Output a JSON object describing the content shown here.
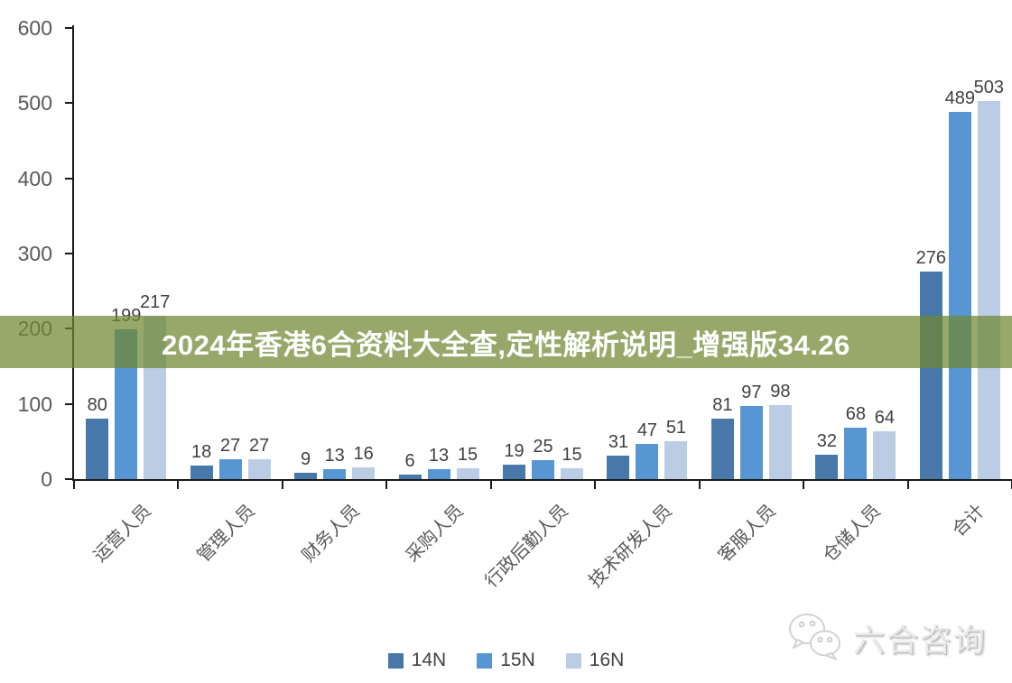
{
  "overlay": {
    "title": "2024年香港6合资料大全查,定性解析说明_增强版34.26",
    "bg_color": "rgba(111,135,48,0.72)",
    "text_color": "#ffffff"
  },
  "chart_data": {
    "type": "bar",
    "title": "",
    "xlabel": "",
    "ylabel": "",
    "ylim": [
      0,
      600
    ],
    "yticks": [
      0,
      100,
      200,
      300,
      400,
      500,
      600
    ],
    "grid": false,
    "legend_position": "bottom",
    "categories": [
      "运营人员",
      "管理人员",
      "财务人员",
      "采购人员",
      "行政后勤人员",
      "技术研发人员",
      "客服人员",
      "仓储人员",
      "合计"
    ],
    "series": [
      {
        "name": "14N",
        "color": "#4878aa",
        "values": [
          80,
          18,
          9,
          6,
          19,
          31,
          81,
          32,
          276
        ]
      },
      {
        "name": "15N",
        "color": "#5896d3",
        "values": [
          199,
          27,
          13,
          13,
          25,
          47,
          97,
          68,
          489
        ]
      },
      {
        "name": "16N",
        "color": "#bacde5",
        "values": [
          217,
          27,
          16,
          15,
          15,
          51,
          98,
          64,
          503
        ]
      }
    ],
    "value_labels": true,
    "axis_color": "#1a1a1a",
    "tick_label_color": "#595959",
    "value_label_color": "#404040"
  },
  "watermark": {
    "text": "六合咨询",
    "icon": "wechat-chat-bubbles-icon"
  }
}
